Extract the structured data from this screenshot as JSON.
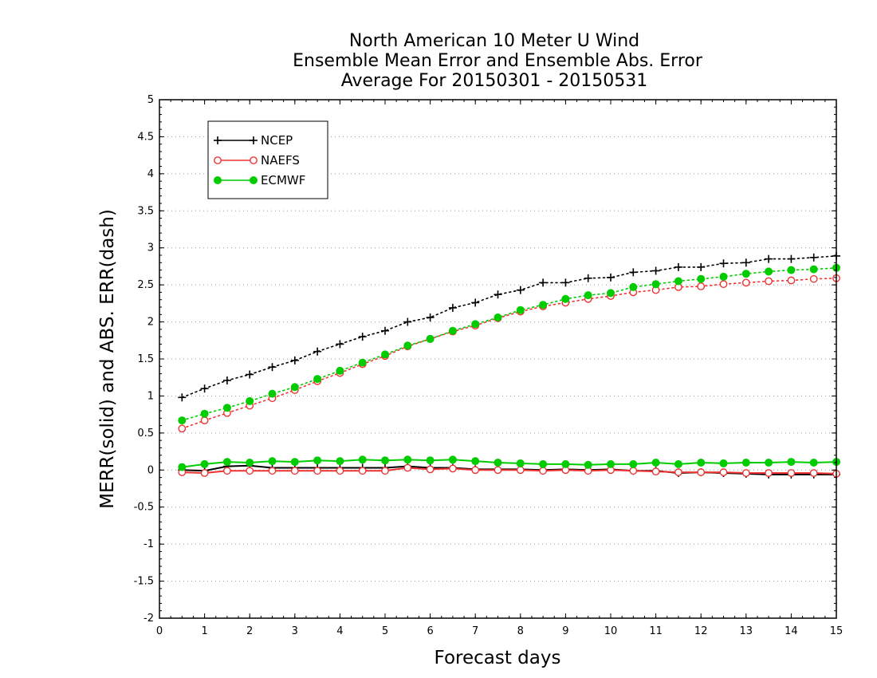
{
  "chart_data": {
    "type": "line",
    "title_lines": [
      "North American 10 Meter U Wind",
      "Ensemble Mean Error and Ensemble Abs. Error",
      "Average For 20150301 - 20150531"
    ],
    "xlabel": "Forecast days",
    "ylabel": "MERR(solid) and ABS. ERR(dash)",
    "xlim": [
      0,
      15
    ],
    "ylim": [
      -2,
      5
    ],
    "x_ticks": [
      "0",
      "1",
      "2",
      "3",
      "4",
      "5",
      "6",
      "7",
      "8",
      "9",
      "10",
      "11",
      "12",
      "13",
      "14",
      "15"
    ],
    "y_ticks": [
      "5",
      "4.5",
      "4",
      "3.5",
      "3",
      "2.5",
      "2",
      "1.5",
      "1",
      "0.5",
      "0",
      "-0.5",
      "-1",
      "-1.5",
      "-2"
    ],
    "grid": "horizontal dotted",
    "legend_position": "top-left",
    "x": [
      0.5,
      1,
      1.5,
      2,
      2.5,
      3,
      3.5,
      4,
      4.5,
      5,
      5.5,
      6,
      6.5,
      7,
      7.5,
      8,
      8.5,
      9,
      9.5,
      10,
      10.5,
      11,
      11.5,
      12,
      12.5,
      13,
      13.5,
      14,
      14.5,
      15
    ],
    "series": [
      {
        "name": "NCEP",
        "color": "#000000",
        "marker": "plus",
        "abs_err": [
          0.98,
          1.1,
          1.21,
          1.29,
          1.39,
          1.48,
          1.6,
          1.7,
          1.8,
          1.88,
          2.0,
          2.06,
          2.19,
          2.26,
          2.37,
          2.43,
          2.53,
          2.53,
          2.59,
          2.6,
          2.67,
          2.69,
          2.74,
          2.74,
          2.79,
          2.8,
          2.85,
          2.85,
          2.87,
          2.89
        ],
        "mean_err": [
          0.0,
          -0.01,
          0.05,
          0.06,
          0.03,
          0.03,
          0.03,
          0.03,
          0.03,
          0.03,
          0.05,
          0.03,
          0.03,
          0.01,
          0.01,
          0.01,
          0.0,
          0.01,
          0.0,
          0.01,
          -0.01,
          -0.01,
          -0.04,
          -0.03,
          -0.04,
          -0.05,
          -0.06,
          -0.06,
          -0.06,
          -0.06
        ]
      },
      {
        "name": "NAEFS",
        "color": "#ee3333",
        "marker": "open-circle",
        "abs_err": [
          0.56,
          0.67,
          0.77,
          0.87,
          0.97,
          1.08,
          1.2,
          1.31,
          1.43,
          1.54,
          1.67,
          1.77,
          1.87,
          1.95,
          2.05,
          2.14,
          2.21,
          2.26,
          2.31,
          2.35,
          2.4,
          2.43,
          2.47,
          2.48,
          2.51,
          2.53,
          2.55,
          2.56,
          2.58,
          2.59
        ],
        "mean_err": [
          -0.03,
          -0.04,
          -0.01,
          -0.01,
          -0.01,
          -0.01,
          -0.01,
          -0.01,
          -0.01,
          -0.01,
          0.03,
          0.01,
          0.02,
          0.0,
          0.0,
          0.0,
          -0.01,
          0.0,
          -0.01,
          0.0,
          -0.01,
          -0.02,
          -0.03,
          -0.03,
          -0.03,
          -0.04,
          -0.04,
          -0.04,
          -0.04,
          -0.05
        ]
      },
      {
        "name": "ECMWF",
        "color": "#00cc00",
        "marker": "filled-circle",
        "abs_err": [
          0.67,
          0.76,
          0.84,
          0.93,
          1.03,
          1.12,
          1.23,
          1.34,
          1.45,
          1.56,
          1.68,
          1.77,
          1.88,
          1.97,
          2.06,
          2.16,
          2.23,
          2.31,
          2.36,
          2.39,
          2.47,
          2.51,
          2.55,
          2.58,
          2.61,
          2.65,
          2.68,
          2.7,
          2.71,
          2.73
        ],
        "mean_err": [
          0.04,
          0.08,
          0.11,
          0.1,
          0.12,
          0.11,
          0.13,
          0.12,
          0.14,
          0.13,
          0.14,
          0.13,
          0.14,
          0.12,
          0.1,
          0.09,
          0.08,
          0.08,
          0.07,
          0.08,
          0.08,
          0.1,
          0.08,
          0.1,
          0.09,
          0.1,
          0.1,
          0.11,
          0.1,
          0.11
        ]
      }
    ]
  }
}
